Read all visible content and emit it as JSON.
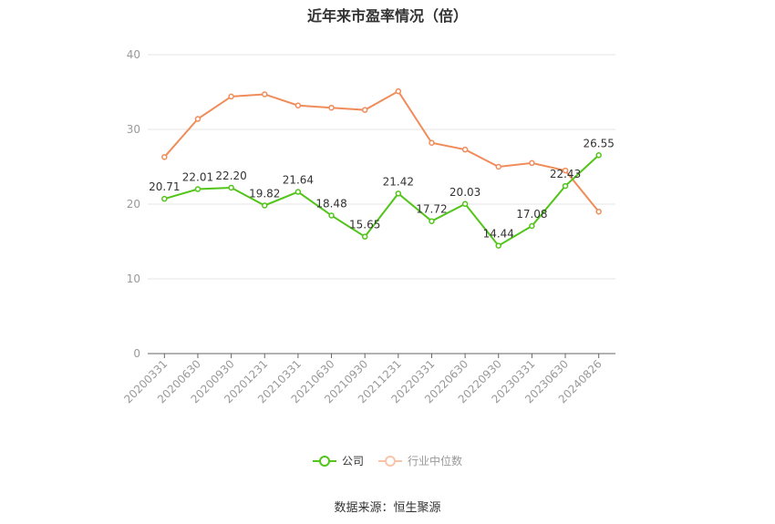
{
  "chart_data": {
    "type": "line",
    "title": "近年来市盈率情况（倍）",
    "categories": [
      "20200331",
      "20200630",
      "20200930",
      "20201231",
      "20210331",
      "20210630",
      "20210930",
      "20211231",
      "20220331",
      "20220630",
      "20220930",
      "20230331",
      "20230630",
      "20240826"
    ],
    "ylim": [
      0,
      40
    ],
    "yticks": [
      0,
      10,
      20,
      30,
      40
    ],
    "grid": true,
    "legend_position": "bottom",
    "series": [
      {
        "name": "公司",
        "color": "#52c41a",
        "values": [
          20.71,
          22.01,
          22.2,
          19.82,
          21.64,
          18.48,
          15.65,
          21.42,
          17.72,
          20.03,
          14.44,
          17.08,
          22.43,
          26.55
        ],
        "labels": [
          "20.71",
          "22.01",
          "22.20",
          "19.82",
          "21.64",
          "18.48",
          "15.65",
          "21.42",
          "17.72",
          "20.03",
          "14.44",
          "17.08",
          "22.43",
          "26.55"
        ]
      },
      {
        "name": "行业中位数",
        "color": "#f08c5a",
        "values": [
          26.3,
          31.4,
          34.4,
          34.7,
          33.2,
          32.9,
          32.6,
          35.1,
          28.2,
          27.3,
          25.0,
          25.5,
          24.5,
          19.0
        ]
      }
    ]
  },
  "source": "数据来源：恒生聚源"
}
